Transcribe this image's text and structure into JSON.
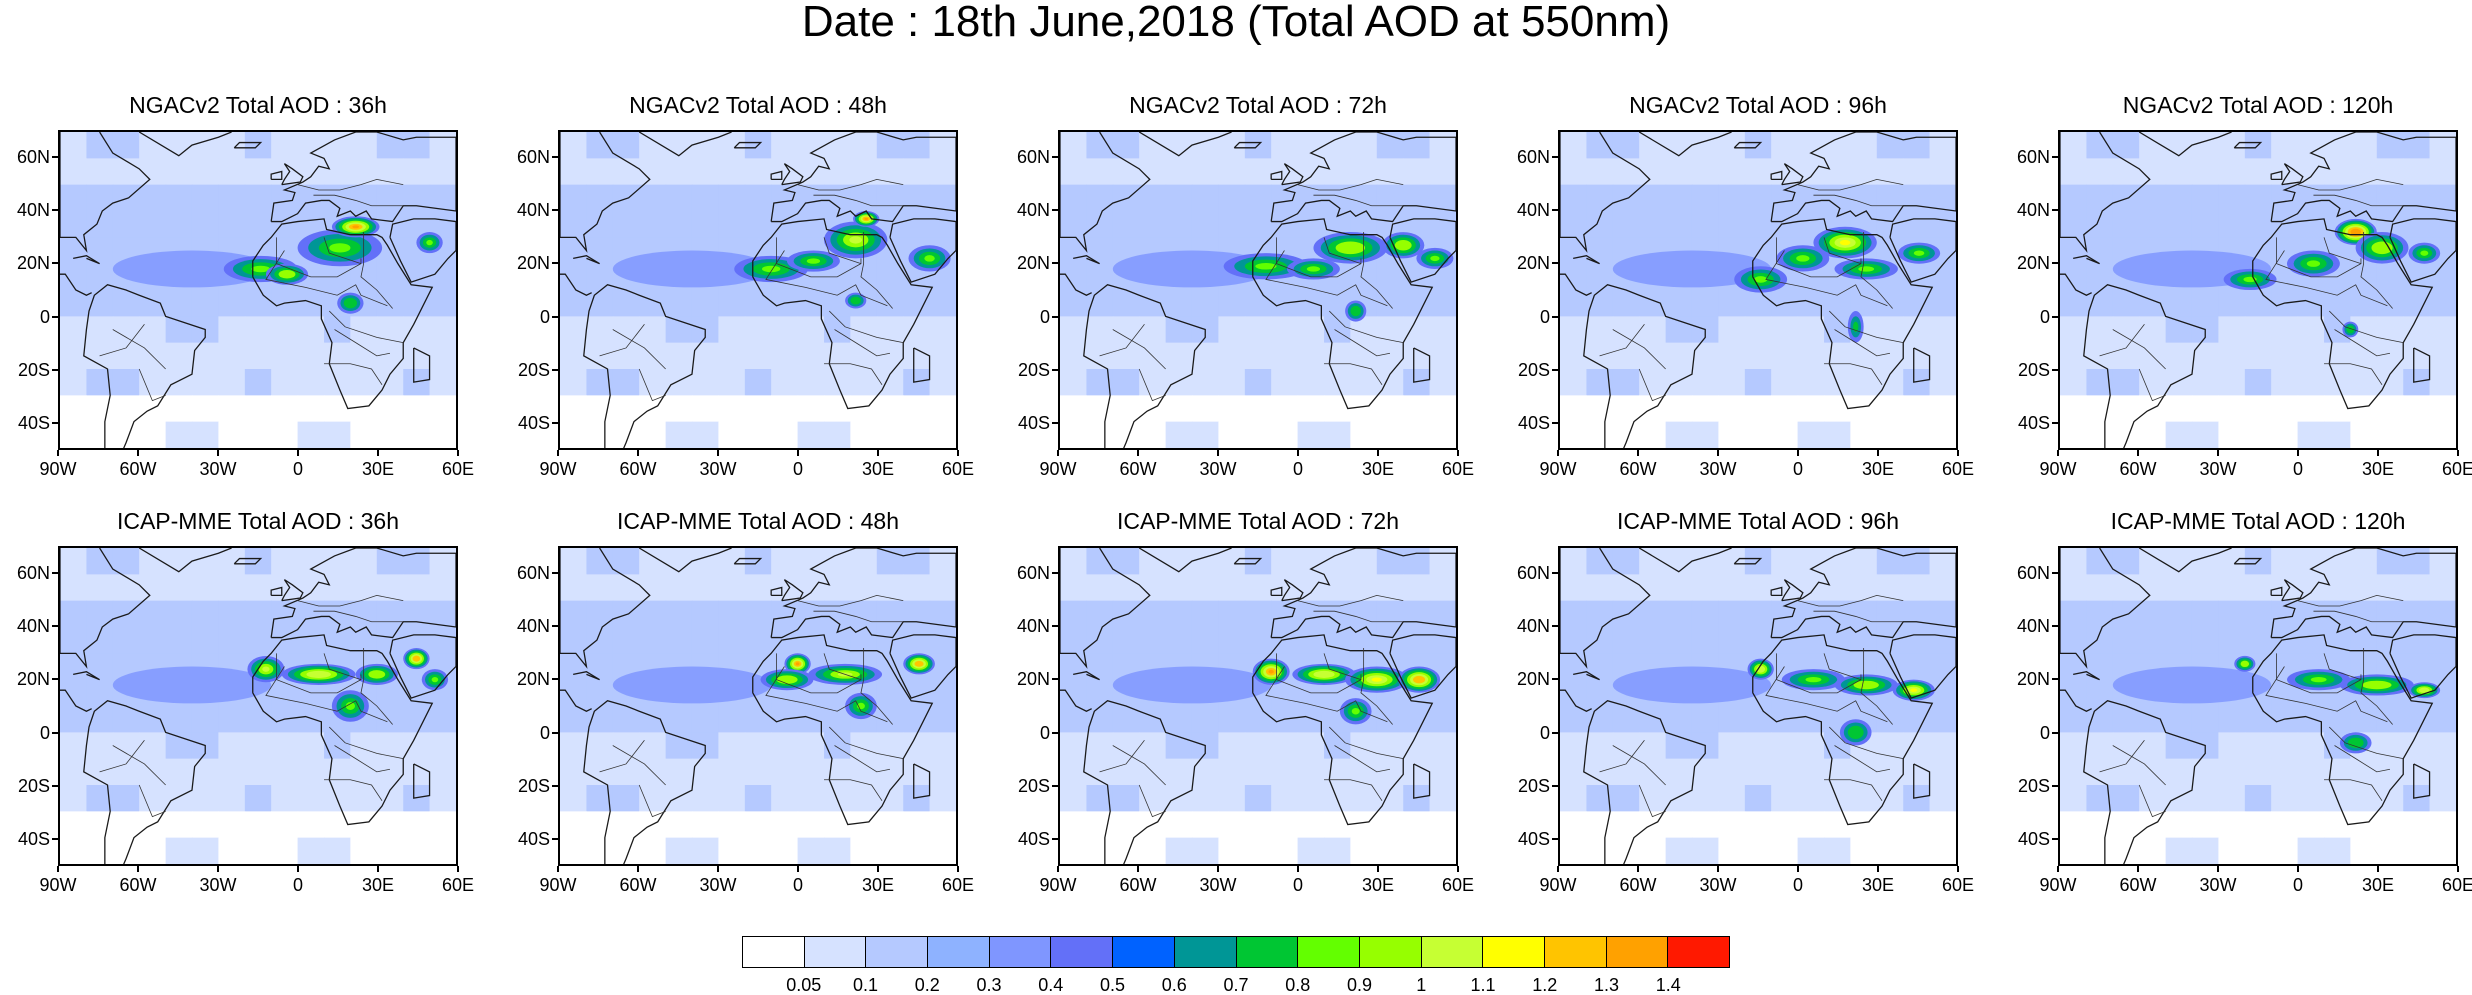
{
  "title": "Date : 18th June,2018 (Total AOD at 550nm)",
  "panels": [
    {
      "title": "NGACv2 Total AOD : 36h",
      "model": "NGACv2",
      "lead": "36h",
      "hot": [
        [
          -14,
          18,
          14,
          5,
          0.8
        ],
        [
          -4,
          16,
          8,
          4,
          0.9
        ],
        [
          16,
          26,
          16,
          7,
          0.85
        ],
        [
          22,
          34,
          9,
          4,
          1.3
        ],
        [
          50,
          28,
          5,
          4,
          0.85
        ],
        [
          20,
          5,
          5,
          4,
          0.75
        ]
      ]
    },
    {
      "title": "NGACv2 Total AOD : 48h",
      "model": "NGACv2",
      "lead": "48h",
      "hot": [
        [
          -10,
          18,
          14,
          5,
          0.8
        ],
        [
          6,
          21,
          10,
          4,
          0.85
        ],
        [
          22,
          29,
          12,
          7,
          1.0
        ],
        [
          26,
          37,
          5,
          3,
          1.3
        ],
        [
          50,
          22,
          8,
          5,
          0.85
        ],
        [
          22,
          6,
          4,
          3,
          0.75
        ]
      ]
    },
    {
      "title": "NGACv2 Total AOD : 72h",
      "model": "NGACv2",
      "lead": "72h",
      "hot": [
        [
          -12,
          19,
          16,
          5,
          0.8
        ],
        [
          6,
          18,
          10,
          4,
          0.85
        ],
        [
          20,
          26,
          14,
          6,
          0.9
        ],
        [
          40,
          27,
          8,
          5,
          0.95
        ],
        [
          52,
          22,
          7,
          4,
          0.85
        ],
        [
          22,
          2,
          4,
          4,
          0.75
        ]
      ]
    },
    {
      "title": "NGACv2 Total AOD : 96h",
      "model": "NGACv2",
      "lead": "96h",
      "hot": [
        [
          -14,
          14,
          10,
          5,
          0.8
        ],
        [
          2,
          22,
          10,
          5,
          0.85
        ],
        [
          18,
          28,
          12,
          6,
          1.15
        ],
        [
          26,
          18,
          12,
          4,
          0.85
        ],
        [
          46,
          24,
          8,
          4,
          0.85
        ],
        [
          22,
          -4,
          3,
          6,
          0.7
        ]
      ]
    },
    {
      "title": "NGACv2 Total AOD : 120h",
      "model": "NGACv2",
      "lead": "120h",
      "hot": [
        [
          -18,
          14,
          10,
          4,
          0.8
        ],
        [
          6,
          20,
          10,
          5,
          0.85
        ],
        [
          22,
          32,
          8,
          5,
          1.35
        ],
        [
          32,
          26,
          10,
          6,
          0.9
        ],
        [
          48,
          24,
          6,
          4,
          0.85
        ],
        [
          20,
          -5,
          3,
          3,
          0.75
        ]
      ]
    },
    {
      "title": "ICAP-MME Total AOD : 36h",
      "model": "ICAP-MME",
      "lead": "36h",
      "hot": [
        [
          -12,
          24,
          7,
          5,
          1.0
        ],
        [
          8,
          22,
          14,
          4,
          1.05
        ],
        [
          30,
          22,
          8,
          4,
          0.9
        ],
        [
          45,
          28,
          5,
          4,
          1.25
        ],
        [
          20,
          10,
          7,
          6,
          0.8
        ],
        [
          52,
          20,
          5,
          4,
          0.85
        ]
      ]
    },
    {
      "title": "ICAP-MME Total AOD : 48h",
      "model": "ICAP-MME",
      "lead": "48h",
      "hot": [
        [
          0,
          26,
          5,
          4,
          1.3
        ],
        [
          -4,
          20,
          10,
          4,
          0.9
        ],
        [
          18,
          22,
          14,
          4,
          1.0
        ],
        [
          46,
          26,
          6,
          4,
          1.25
        ],
        [
          24,
          10,
          6,
          5,
          0.8
        ]
      ]
    },
    {
      "title": "ICAP-MME Total AOD : 72h",
      "model": "ICAP-MME",
      "lead": "72h",
      "hot": [
        [
          -10,
          23,
          7,
          5,
          1.3
        ],
        [
          10,
          22,
          12,
          4,
          1.05
        ],
        [
          30,
          20,
          12,
          5,
          1.1
        ],
        [
          46,
          20,
          8,
          5,
          1.25
        ],
        [
          22,
          8,
          6,
          5,
          0.8
        ]
      ]
    },
    {
      "title": "ICAP-MME Total AOD : 96h",
      "model": "ICAP-MME",
      "lead": "96h",
      "hot": [
        [
          -14,
          24,
          5,
          4,
          1.05
        ],
        [
          6,
          20,
          12,
          4,
          0.85
        ],
        [
          26,
          18,
          12,
          4,
          0.9
        ],
        [
          44,
          16,
          8,
          4,
          1.15
        ],
        [
          22,
          0,
          6,
          5,
          0.75
        ]
      ]
    },
    {
      "title": "ICAP-MME Total AOD : 120h",
      "model": "ICAP-MME",
      "lead": "120h",
      "hot": [
        [
          -20,
          26,
          4,
          3,
          0.9
        ],
        [
          8,
          20,
          12,
          4,
          0.85
        ],
        [
          30,
          18,
          14,
          4,
          0.9
        ],
        [
          48,
          16,
          6,
          3,
          1.05
        ],
        [
          22,
          -4,
          6,
          4,
          0.75
        ]
      ]
    }
  ],
  "axes": {
    "lat_ticks": [
      "60N",
      "40N",
      "20N",
      "0",
      "20S",
      "40S"
    ],
    "lat_values": [
      60,
      40,
      20,
      0,
      -20,
      -40
    ],
    "lon_ticks": [
      "90W",
      "60W",
      "30W",
      "0",
      "30E",
      "60E"
    ],
    "lon_values": [
      -90,
      -60,
      -30,
      0,
      30,
      60
    ],
    "lon_range": [
      -90,
      60
    ],
    "lat_range": [
      -50,
      70
    ]
  },
  "colorbar": {
    "labels": [
      "0.05",
      "0.1",
      "0.2",
      "0.3",
      "0.4",
      "0.5",
      "0.6",
      "0.7",
      "0.8",
      "0.9",
      "1",
      "1.1",
      "1.2",
      "1.3",
      "1.4"
    ],
    "thresholds": [
      0.05,
      0.1,
      0.2,
      0.3,
      0.4,
      0.5,
      0.6,
      0.7,
      0.8,
      0.9,
      1.0,
      1.1,
      1.2,
      1.3,
      1.4
    ],
    "colors": [
      "#ffffff",
      "#d6e2ff",
      "#b5c9ff",
      "#8eb2ff",
      "#7f96ff",
      "#6370f8",
      "#0062ff",
      "#009696",
      "#00c633",
      "#63ff00",
      "#96ff00",
      "#c6ff33",
      "#ffff00",
      "#ffc400",
      "#ffa100",
      "#ff7c00",
      "#ff1900"
    ]
  }
}
